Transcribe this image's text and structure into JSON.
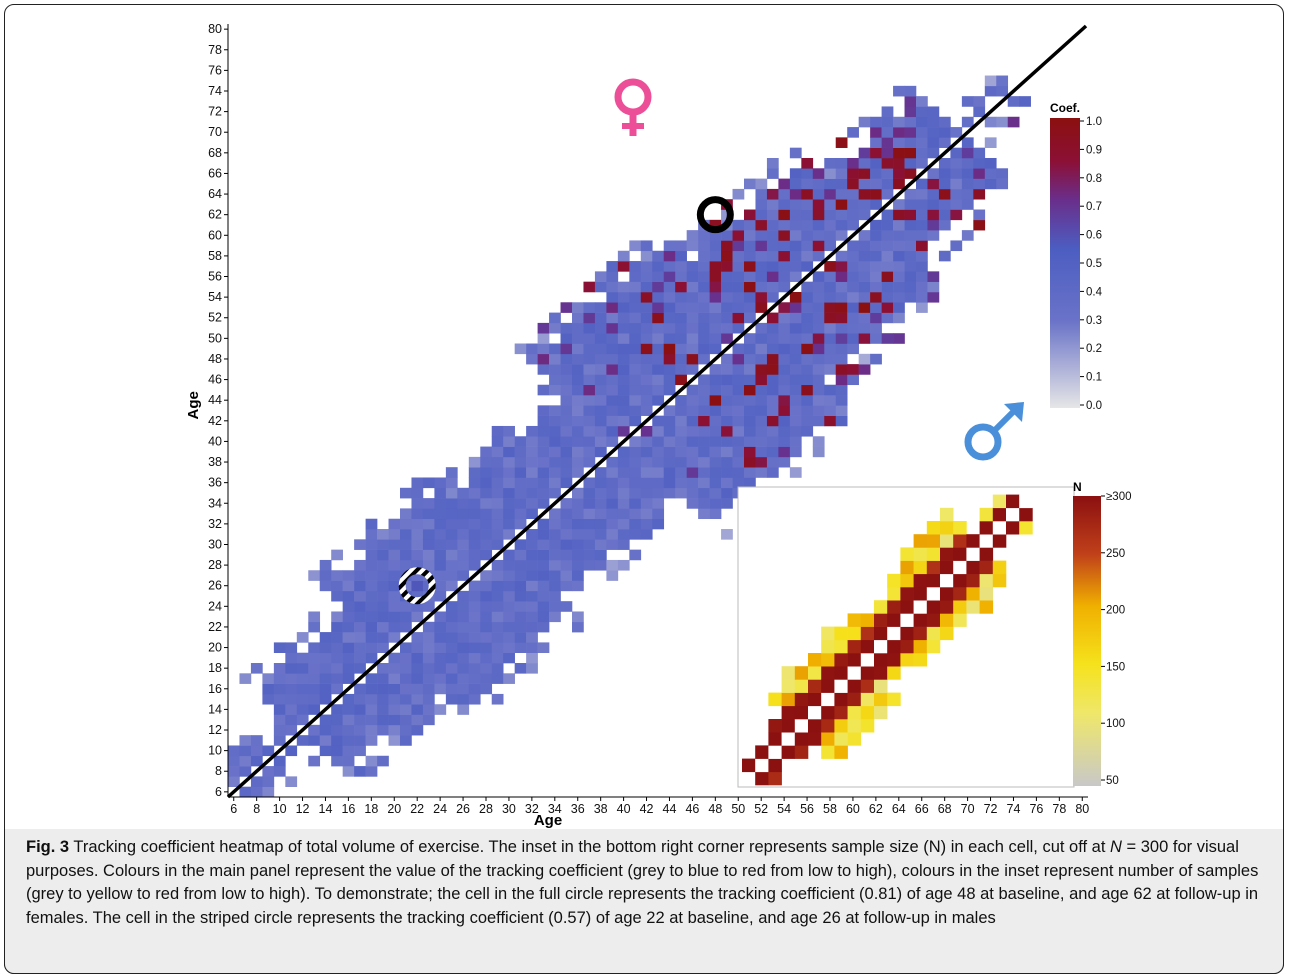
{
  "colors": {
    "coef_gradient": [
      "#e6e6e6",
      "#4c5dc1",
      "#d04f86",
      "#8b1010"
    ],
    "n_gradient": [
      "#c8c8c8",
      "#f5e21c",
      "#f0c000",
      "#b32712",
      "#8b1010"
    ],
    "female_symbol": "#ec4f98",
    "male_symbol": "#4a8fd9"
  },
  "symbols": {
    "female": "female-symbol-icon",
    "male": "male-symbol-icon"
  },
  "chart_data": [
    {
      "type": "heatmap",
      "title": "",
      "xlabel": "Age",
      "ylabel": "Age",
      "x_ticks": [
        "6",
        "8",
        "10",
        "12",
        "14",
        "16",
        "18",
        "20",
        "22",
        "24",
        "26",
        "28",
        "30",
        "32",
        "34",
        "36",
        "38",
        "40",
        "42",
        "44",
        "46",
        "48",
        "50",
        "52",
        "54",
        "56",
        "58",
        "60",
        "62",
        "64",
        "66",
        "68",
        "70",
        "72",
        "74",
        "76",
        "78",
        "80"
      ],
      "y_ticks": [
        "6",
        "8",
        "10",
        "12",
        "14",
        "16",
        "18",
        "20",
        "22",
        "24",
        "26",
        "28",
        "30",
        "32",
        "34",
        "36",
        "38",
        "40",
        "42",
        "44",
        "46",
        "48",
        "50",
        "52",
        "54",
        "56",
        "58",
        "60",
        "62",
        "64",
        "66",
        "68",
        "70",
        "72",
        "74",
        "76",
        "78",
        "80"
      ],
      "xlim": [
        6,
        80
      ],
      "ylim": [
        6,
        80
      ],
      "diagonal_line": true,
      "legend": {
        "title": "Coef.",
        "ticks": [
          "1.0",
          "0.9",
          "0.8",
          "0.7",
          "0.6",
          "0.5",
          "0.4",
          "0.3",
          "0.2",
          "0.1",
          "0.0"
        ],
        "range": [
          0.0,
          1.0
        ],
        "placement": "right"
      },
      "highlighted_cells": [
        {
          "x": 48,
          "y": 62,
          "value": 0.81,
          "marker": "full-circle",
          "group": "females"
        },
        {
          "x": 22,
          "y": 26,
          "value": 0.57,
          "marker": "striped-circle",
          "group": "males"
        }
      ],
      "upper_triangle_group": "females",
      "lower_triangle_group": "males"
    },
    {
      "type": "heatmap",
      "title": "",
      "description": "inset, bottom right",
      "legend": {
        "title": "N",
        "ticks": [
          "≥300",
          "250",
          "200",
          "150",
          "100",
          "50"
        ],
        "range": [
          50,
          300
        ],
        "placement": "right"
      }
    }
  ],
  "caption": {
    "label": "Fig. 3",
    "text_a": " Tracking coefficient heatmap of total volume of exercise. The inset in the bottom right corner represents sample size (N) in each cell, cut off at ",
    "n_italic": "N",
    "text_b": " = 300 for visual purposes. Colours in the main panel represent the value of the tracking coefficient (grey to blue to red from low to high), colours in the inset represent number of samples (grey to yellow to red from low to high). To demonstrate; the cell in the full circle represents the tracking coefficient (0.81) of age 48 at baseline, and age 62 at follow-up in females. The cell in the striped circle represents the tracking coefficient (0.57) of age 22 at baseline, and age 26 at follow-up in males"
  }
}
